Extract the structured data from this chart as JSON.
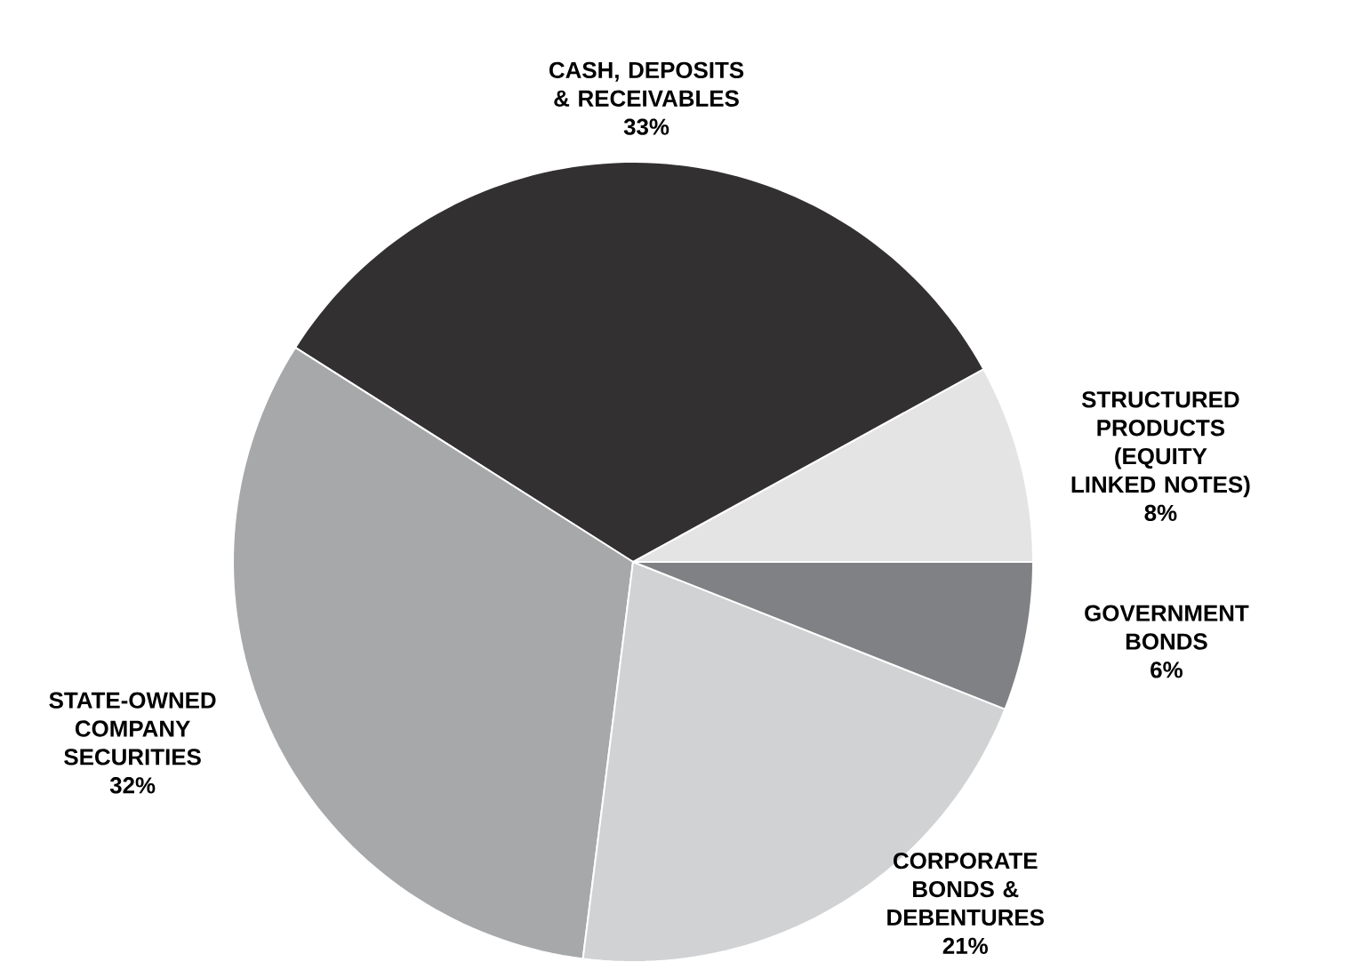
{
  "chart_data": {
    "type": "pie",
    "categories": [
      "STRUCTURED PRODUCTS (EQUITY LINKED NOTES)",
      "CASH, DEPOSITS & RECEIVABLES",
      "STATE-OWNED COMPANY SECURITIES",
      "CORPORATE BONDS & DEBENTURES",
      "GOVERNMENT BONDS"
    ],
    "values": [
      8,
      33,
      32,
      21,
      6
    ],
    "value_labels": [
      "8%",
      "33%",
      "32%",
      "21%",
      "6%"
    ],
    "colors": [
      "#e4e4e5",
      "#323031",
      "#a7a8aa",
      "#d1d2d3",
      "#808184"
    ]
  }
}
